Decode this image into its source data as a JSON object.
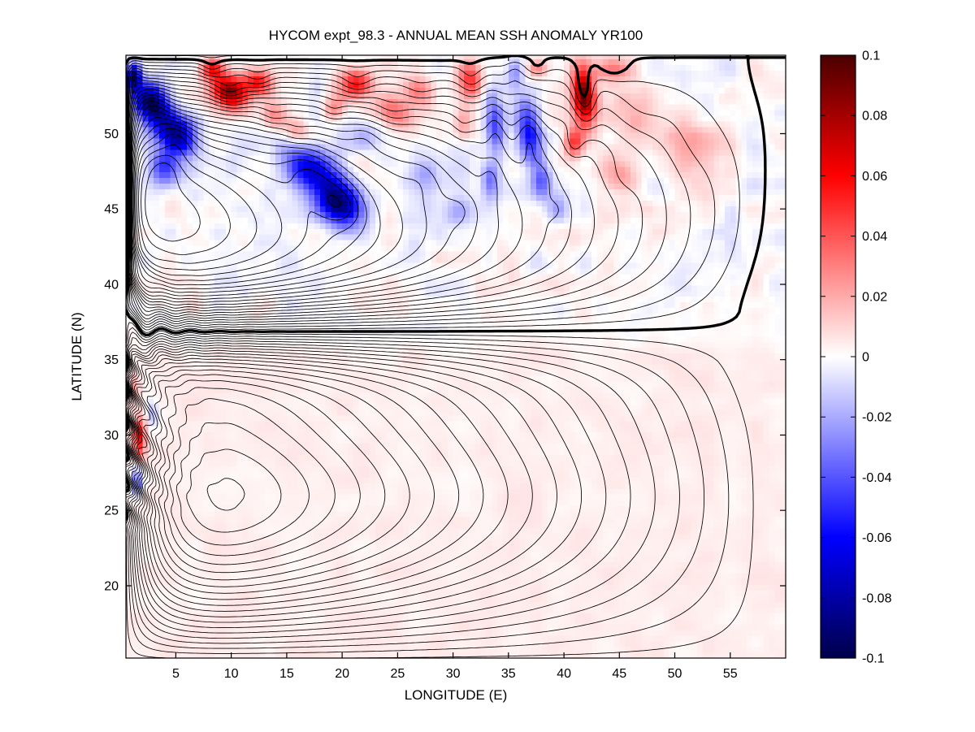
{
  "chart_data": {
    "type": "contour",
    "title": "HYCOM expt_98.3 - ANNUAL MEAN SSH ANOMALY YR100",
    "xlabel": "LONGITUDE (E)",
    "ylabel": "LATITUDE (N)",
    "x_range": [
      0.5,
      60
    ],
    "y_range": [
      15.2,
      55.2
    ],
    "x_ticks": [
      5,
      10,
      15,
      20,
      25,
      30,
      35,
      40,
      45,
      50,
      55
    ],
    "y_ticks": [
      20,
      25,
      30,
      35,
      40,
      45,
      50
    ],
    "grid": false,
    "contour_interval": 0.01,
    "zero_contour": "thick",
    "contour_color": "#000000",
    "contour_perturb_factor": 0.3,
    "colorbar": {
      "vmin": -0.1,
      "vmax": 0.1,
      "tick_values": [
        0.1,
        0.08,
        0.06,
        0.04,
        0.02,
        0,
        -0.02,
        -0.04,
        -0.06,
        -0.08,
        -0.1
      ],
      "tick_labels": [
        "0.1",
        "0.08",
        "0.06",
        "0.04",
        "0.02",
        "0",
        "-0.02",
        "-0.04",
        "-0.06",
        "-0.08",
        "-0.1"
      ],
      "mid_fraction": 0.6,
      "cmap_stops": {
        "neg_end": "#00004A",
        "neg_mid": "#0000FF",
        "zero": "#FFFFFF",
        "pos_mid": "#FF0000",
        "pos_end": "#4A0000"
      }
    },
    "gyres": [
      {
        "name": "northern-cyclonic-gyre",
        "sign": -1,
        "amplitude": 0.24,
        "lat_min": 36.95,
        "lat_max": 55.05,
        "west_decay": 0.55,
        "center_lon": 3.1,
        "center_lat": 46.0
      },
      {
        "name": "southern-anticyclonic-gyre",
        "sign": 1,
        "amplitude": 0.26,
        "lat_min": 15.0,
        "lat_max": 36.7,
        "west_decay": 3.2,
        "center_lon": 9.8,
        "center_lat": 25.9
      }
    ],
    "anomaly_blobs_format": "lon, lat, amplitude, sigma_lon, sigma_lat, rotation_deg",
    "anomaly_blobs": [
      [
        1.2,
        53.8,
        -0.09,
        0.7,
        0.9,
        0
      ],
      [
        2.8,
        52.0,
        -0.1,
        1.6,
        1.3,
        -15
      ],
      [
        5.0,
        50.0,
        -0.09,
        1.9,
        1.2,
        -20
      ],
      [
        4.0,
        47.8,
        -0.055,
        1.5,
        1.3,
        0
      ],
      [
        9.8,
        52.8,
        0.09,
        1.6,
        1.1,
        -10
      ],
      [
        12.4,
        53.5,
        0.055,
        1.3,
        0.9,
        0
      ],
      [
        8.2,
        54.3,
        0.05,
        1.0,
        0.7,
        0
      ],
      [
        13.8,
        51.2,
        0.03,
        1.2,
        0.9,
        0
      ],
      [
        15.9,
        50.1,
        0.025,
        1.2,
        0.9,
        0
      ],
      [
        17.2,
        47.6,
        -0.07,
        2.6,
        1.5,
        -18
      ],
      [
        19.8,
        45.4,
        -0.085,
        2.1,
        1.4,
        -20
      ],
      [
        22.0,
        49.8,
        -0.028,
        1.3,
        1.0,
        0
      ],
      [
        21.3,
        53.3,
        0.055,
        1.5,
        1.0,
        0
      ],
      [
        19.2,
        51.6,
        0.03,
        1.0,
        0.8,
        0
      ],
      [
        24.5,
        51.5,
        0.035,
        1.6,
        1.1,
        -20
      ],
      [
        27.0,
        52.8,
        0.03,
        1.5,
        1.0,
        0
      ],
      [
        27.2,
        47.2,
        -0.022,
        1.6,
        1.5,
        0
      ],
      [
        30.6,
        44.9,
        -0.027,
        1.3,
        1.0,
        0
      ],
      [
        31.6,
        53.5,
        0.045,
        1.1,
        1.3,
        10
      ],
      [
        30.9,
        50.6,
        0.025,
        0.9,
        1.1,
        0
      ],
      [
        33.8,
        50.6,
        -0.045,
        0.85,
        2.0,
        8
      ],
      [
        33.4,
        46.9,
        -0.03,
        0.8,
        1.3,
        0
      ],
      [
        35.6,
        54.1,
        -0.028,
        0.8,
        0.9,
        0
      ],
      [
        36.9,
        50.1,
        -0.062,
        1.1,
        2.0,
        12
      ],
      [
        38.0,
        46.9,
        -0.035,
        0.9,
        1.2,
        0
      ],
      [
        39.3,
        45.0,
        -0.02,
        1.0,
        0.8,
        0
      ],
      [
        41.8,
        52.4,
        0.095,
        1.0,
        1.9,
        8
      ],
      [
        40.9,
        49.4,
        0.05,
        0.85,
        1.0,
        0
      ],
      [
        44.4,
        54.3,
        0.035,
        1.6,
        0.8,
        0
      ],
      [
        46.6,
        51.2,
        0.022,
        2.4,
        1.8,
        0
      ],
      [
        51.5,
        49.2,
        0.016,
        3.0,
        2.4,
        0
      ],
      [
        45.2,
        47.2,
        0.02,
        1.8,
        1.4,
        0
      ],
      [
        37.6,
        54.4,
        0.028,
        0.9,
        0.6,
        0
      ],
      [
        1.7,
        29.8,
        0.055,
        0.55,
        1.4,
        0
      ],
      [
        1.5,
        27.0,
        -0.038,
        0.5,
        1.0,
        0
      ],
      [
        2.9,
        31.4,
        -0.02,
        0.5,
        0.9,
        0
      ],
      [
        1.3,
        33.2,
        0.018,
        0.45,
        0.8,
        0
      ]
    ],
    "noise": {
      "seed": 11,
      "amp_north": 0.01,
      "amp_south": 0.0035,
      "lat_split": 37.5
    },
    "pcolor_cell": {
      "dlon": 0.5,
      "dlat": 0.375
    },
    "background": "#FFFFFF"
  }
}
